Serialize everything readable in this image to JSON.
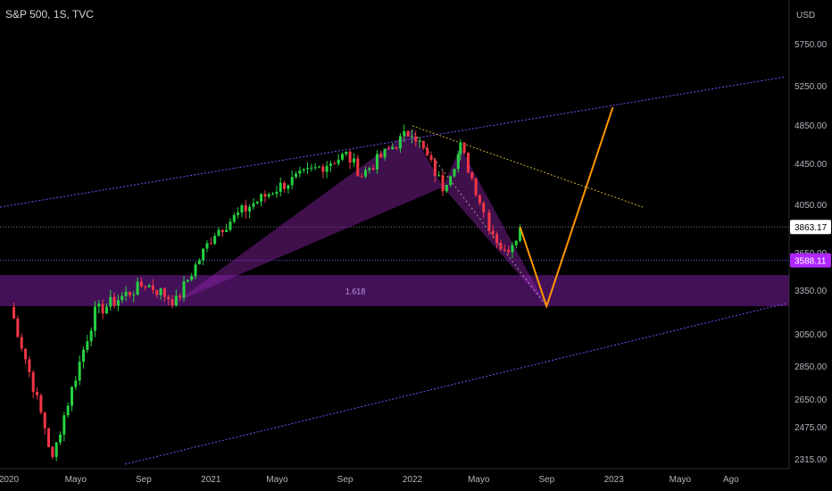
{
  "header": {
    "ticker": "S&P 500, 1S, TVC"
  },
  "chart_data": {
    "type": "candlestick",
    "title": "S&P 500, 1S, TVC",
    "currency_label": "USD",
    "y_ticks": [
      {
        "value": 2315,
        "label": "2315.00"
      },
      {
        "value": 2475,
        "label": "2475.00"
      },
      {
        "value": 2650,
        "label": "2650.00"
      },
      {
        "value": 2850,
        "label": "2850.00"
      },
      {
        "value": 3050,
        "label": "3050.00"
      },
      {
        "value": 3350,
        "label": "3350.00"
      },
      {
        "value": 3650,
        "label": "3650.00"
      },
      {
        "value": 4050,
        "label": "4050.00"
      },
      {
        "value": 4450,
        "label": "4450.00"
      },
      {
        "value": 4850,
        "label": "4850.00"
      },
      {
        "value": 5250,
        "label": "5250.00"
      },
      {
        "value": 5750,
        "label": "5750.00"
      }
    ],
    "x_ticks": [
      {
        "date": "2020-01-01",
        "label": "2020"
      },
      {
        "date": "2020-05-01",
        "label": "Mayo"
      },
      {
        "date": "2020-09-01",
        "label": "Sep"
      },
      {
        "date": "2021-01-01",
        "label": "2021"
      },
      {
        "date": "2021-05-01",
        "label": "Mayo"
      },
      {
        "date": "2021-09-01",
        "label": "Sep"
      },
      {
        "date": "2022-01-01",
        "label": "2022"
      },
      {
        "date": "2022-05-01",
        "label": "Mayo"
      },
      {
        "date": "2022-09-01",
        "label": "Sep"
      },
      {
        "date": "2023-01-01",
        "label": "2023"
      },
      {
        "date": "2023-05-01",
        "label": "Mayo"
      },
      {
        "date": "2023-08-01",
        "label": "Ago"
      }
    ],
    "price_labels": [
      {
        "value": 3863.17,
        "label": "3863.17",
        "bg": "#ffffff",
        "fg": "#000000"
      },
      {
        "value": 3588.11,
        "label": "3588.11",
        "bg": "#b026ff",
        "fg": "#ffffff"
      }
    ],
    "support_zone": {
      "from": 3240,
      "to": 3470
    },
    "zone_label": "1.618",
    "anchor_points": [
      {
        "date": "2020-01-03",
        "value": 3235
      },
      {
        "date": "2020-03-20",
        "value": 2305
      },
      {
        "date": "2020-06-05",
        "value": 3195
      },
      {
        "date": "2020-09-04",
        "value": 3400
      },
      {
        "date": "2020-10-30",
        "value": 3270
      },
      {
        "date": "2021-01-08",
        "value": 3820
      },
      {
        "date": "2021-05-07",
        "value": 4230
      },
      {
        "date": "2021-09-03",
        "value": 4540
      },
      {
        "date": "2021-10-01",
        "value": 4340
      },
      {
        "date": "2021-12-31",
        "value": 4800
      },
      {
        "date": "2022-02-25",
        "value": 4220
      },
      {
        "date": "2022-03-29",
        "value": 4620
      },
      {
        "date": "2022-05-20",
        "value": 3880
      },
      {
        "date": "2022-06-17",
        "value": 3640
      },
      {
        "date": "2022-07-15",
        "value": 3860
      }
    ],
    "projection": [
      {
        "date": "2022-07-15",
        "value": 3863
      },
      {
        "date": "2022-09-01",
        "value": 3240
      },
      {
        "date": "2022-12-30",
        "value": 5030
      }
    ],
    "colors": {
      "up": "#26d142",
      "down": "#f23645",
      "pattern_fill": "#8e24aa",
      "zone": "#7b1fa2",
      "projection": "#ff9800",
      "channel": "#7c4dff"
    }
  }
}
